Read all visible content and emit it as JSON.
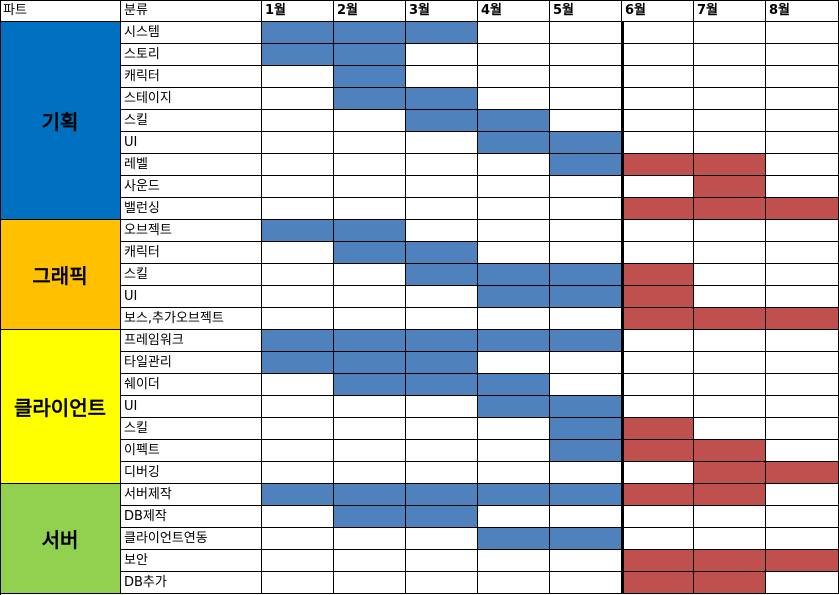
{
  "header": {
    "part": "파트",
    "category": "분류",
    "months": [
      "1월",
      "2월",
      "3월",
      "4월",
      "5월",
      "6월",
      "7월",
      "8월"
    ]
  },
  "colors": {
    "plan": "#4f81bd",
    "extra": "#c0504d",
    "part_planning": "#0070c0",
    "part_graphics": "#ffc000",
    "part_client": "#ffff00",
    "part_server": "#92d050",
    "grid": "#000000"
  },
  "parts": [
    {
      "name": "기획",
      "color": "#0070c0",
      "rows": [
        {
          "label": "시스템",
          "cells": [
            "plan",
            "plan",
            "plan",
            "",
            "",
            "",
            "",
            ""
          ]
        },
        {
          "label": "스토리",
          "cells": [
            "plan",
            "plan",
            "",
            "",
            "",
            "",
            "",
            ""
          ]
        },
        {
          "label": "캐릭터",
          "cells": [
            "",
            "plan",
            "",
            "",
            "",
            "",
            "",
            ""
          ]
        },
        {
          "label": "스테이지",
          "cells": [
            "",
            "plan",
            "plan",
            "",
            "",
            "",
            "",
            ""
          ]
        },
        {
          "label": "스킬",
          "cells": [
            "",
            "",
            "plan",
            "plan",
            "",
            "",
            "",
            ""
          ]
        },
        {
          "label": "UI",
          "cells": [
            "",
            "",
            "",
            "plan",
            "plan",
            "",
            "",
            ""
          ]
        },
        {
          "label": "레벨",
          "cells": [
            "",
            "",
            "",
            "",
            "plan",
            "extra",
            "extra",
            ""
          ]
        },
        {
          "label": "사운드",
          "cells": [
            "",
            "",
            "",
            "",
            "",
            "",
            "extra",
            ""
          ]
        },
        {
          "label": "밸런싱",
          "cells": [
            "",
            "",
            "",
            "",
            "",
            "extra",
            "extra",
            "extra"
          ]
        }
      ]
    },
    {
      "name": "그래픽",
      "color": "#ffc000",
      "rows": [
        {
          "label": "오브젝트",
          "cells": [
            "plan",
            "plan",
            "",
            "",
            "",
            "",
            "",
            ""
          ]
        },
        {
          "label": "캐릭터",
          "cells": [
            "",
            "plan",
            "plan",
            "",
            "",
            "",
            "",
            ""
          ]
        },
        {
          "label": "스킬",
          "cells": [
            "",
            "",
            "plan",
            "plan",
            "plan",
            "extra",
            "",
            ""
          ]
        },
        {
          "label": "UI",
          "cells": [
            "",
            "",
            "",
            "plan",
            "plan",
            "extra",
            "",
            ""
          ]
        },
        {
          "label": "보스,추가오브젝트",
          "cells": [
            "",
            "",
            "",
            "",
            "",
            "extra",
            "extra",
            "extra"
          ]
        }
      ]
    },
    {
      "name": "클라이언트",
      "color": "#ffff00",
      "rows": [
        {
          "label": "프레임워크",
          "cells": [
            "plan",
            "plan",
            "plan",
            "plan",
            "plan",
            "",
            "",
            ""
          ]
        },
        {
          "label": "타일관리",
          "cells": [
            "plan",
            "plan",
            "plan",
            "",
            "",
            "",
            "",
            ""
          ]
        },
        {
          "label": "쉐이더",
          "cells": [
            "",
            "plan",
            "plan",
            "plan",
            "",
            "",
            "",
            ""
          ]
        },
        {
          "label": "UI",
          "cells": [
            "",
            "",
            "",
            "plan",
            "plan",
            "",
            "",
            ""
          ]
        },
        {
          "label": "스킬",
          "cells": [
            "",
            "",
            "",
            "",
            "plan",
            "extra",
            "",
            ""
          ]
        },
        {
          "label": "이펙트",
          "cells": [
            "",
            "",
            "",
            "",
            "plan",
            "extra",
            "extra",
            ""
          ]
        },
        {
          "label": "디버깅",
          "cells": [
            "",
            "",
            "",
            "",
            "",
            "",
            "extra",
            "extra"
          ]
        }
      ]
    },
    {
      "name": "서버",
      "color": "#92d050",
      "rows": [
        {
          "label": "서버제작",
          "cells": [
            "plan",
            "plan",
            "plan",
            "plan",
            "plan",
            "extra",
            "extra",
            ""
          ]
        },
        {
          "label": "DB제작",
          "cells": [
            "",
            "plan",
            "plan",
            "",
            "",
            "",
            "",
            ""
          ]
        },
        {
          "label": "클라이언트연동",
          "cells": [
            "",
            "",
            "",
            "plan",
            "plan",
            "",
            "",
            ""
          ]
        },
        {
          "label": "보안",
          "cells": [
            "",
            "",
            "",
            "",
            "",
            "extra",
            "extra",
            "extra"
          ]
        },
        {
          "label": "DB추가",
          "cells": [
            "",
            "",
            "",
            "",
            "",
            "extra",
            "extra",
            ""
          ]
        }
      ]
    }
  ]
}
